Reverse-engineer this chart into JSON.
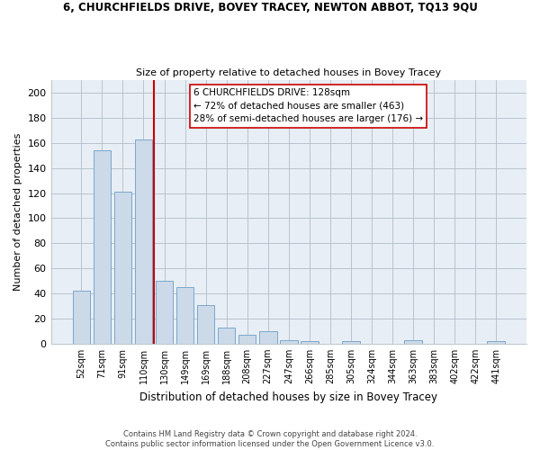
{
  "title1": "6, CHURCHFIELDS DRIVE, BOVEY TRACEY, NEWTON ABBOT, TQ13 9QU",
  "title2": "Size of property relative to detached houses in Bovey Tracey",
  "xlabel": "Distribution of detached houses by size in Bovey Tracey",
  "ylabel": "Number of detached properties",
  "bar_color": "#ccd9e8",
  "bar_edge_color": "#7aa8cc",
  "bg_color": "#e8eef5",
  "categories": [
    "52sqm",
    "71sqm",
    "91sqm",
    "110sqm",
    "130sqm",
    "149sqm",
    "169sqm",
    "188sqm",
    "208sqm",
    "227sqm",
    "247sqm",
    "266sqm",
    "285sqm",
    "305sqm",
    "324sqm",
    "344sqm",
    "363sqm",
    "383sqm",
    "402sqm",
    "422sqm",
    "441sqm"
  ],
  "values": [
    42,
    154,
    121,
    163,
    50,
    45,
    31,
    13,
    7,
    10,
    3,
    2,
    0,
    2,
    0,
    0,
    3,
    0,
    0,
    0,
    2
  ],
  "ylim": [
    0,
    210
  ],
  "yticks": [
    0,
    20,
    40,
    60,
    80,
    100,
    120,
    140,
    160,
    180,
    200
  ],
  "property_line_x": 3.5,
  "property_line_color": "#cc0000",
  "annotation_title": "6 CHURCHFIELDS DRIVE: 128sqm",
  "annotation_line1": "← 72% of detached houses are smaller (463)",
  "annotation_line2": "28% of semi-detached houses are larger (176) →",
  "annotation_box_color": "#ffffff",
  "annotation_box_edge": "#cc0000",
  "footnote1": "Contains HM Land Registry data © Crown copyright and database right 2024.",
  "footnote2": "Contains public sector information licensed under the Open Government Licence v3.0."
}
